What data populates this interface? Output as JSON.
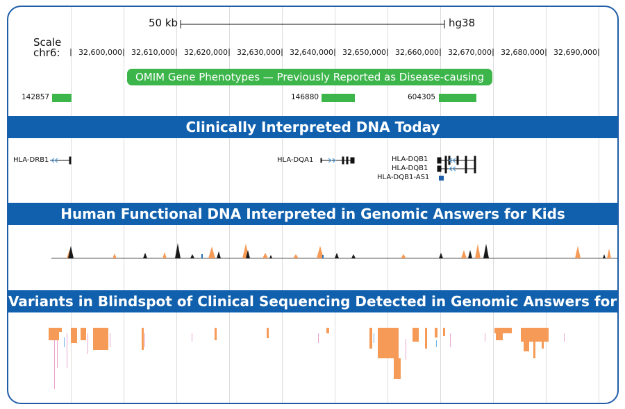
{
  "header": {
    "scale_distance": "50 kb",
    "assembly": "hg38",
    "scale_label": "Scale",
    "chrom_label": "chr6:"
  },
  "axis": {
    "ticks": [
      "32,600,000",
      "32,610,000",
      "32,620,000",
      "32,630,000",
      "32,640,000",
      "32,650,000",
      "32,660,000",
      "32,670,000",
      "32,680,000",
      "32,690,000"
    ]
  },
  "omim": {
    "title": "OMIM Gene Phenotypes — Previously Reported as Disease-causing",
    "entries": [
      {
        "id": "142857"
      },
      {
        "id": "146880"
      },
      {
        "id": "604305"
      }
    ],
    "color": "#3cb54a"
  },
  "sections": {
    "clinical": "Clinically Interpreted DNA Today",
    "functional": "Human Functional DNA Interpreted in Genomic Answers for Kids",
    "variants": "Variants in Blindspot of Clinical Sequencing Detected in Genomic Answers for Kids"
  },
  "genes": [
    {
      "name": "HLA-DRB1"
    },
    {
      "name": "HLA-DQA1"
    },
    {
      "name": "HLA-DQB1"
    },
    {
      "name": "HLA-DQB1"
    },
    {
      "name": "HLA-DQB1-AS1"
    }
  ],
  "colors": {
    "band": "#1060ad",
    "border": "#1f5da8",
    "orange": "#f59b57",
    "signal_black": "#1a1a1a",
    "arrow_blue": "#5aa3e0"
  }
}
